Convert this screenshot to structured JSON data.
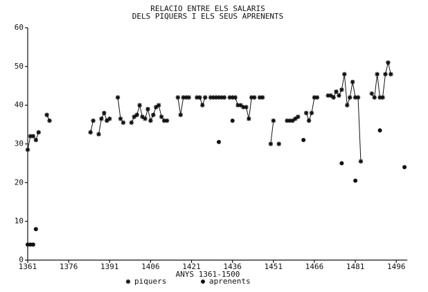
{
  "chart_data": {
    "type": "line",
    "title": [
      "RELACIO ENTRE ELS SALARIS",
      "DELS PIQUERS I ELS SEUS APRENENTS"
    ],
    "x_label": "ANYS 1361-1500",
    "xlim": [
      1361,
      1500
    ],
    "xticks": [
      1361,
      1376,
      1391,
      1406,
      1421,
      1436,
      1451,
      1466,
      1481,
      1496
    ],
    "ylim": [
      0,
      60
    ],
    "yticks": [
      0,
      10,
      20,
      30,
      40,
      50,
      60
    ],
    "grid": false,
    "series": [
      {
        "name": "piquers",
        "color": "#111111",
        "marker": "star",
        "line": true,
        "x": [
          1361,
          1362,
          1363,
          1364,
          1365,
          1366,
          1368,
          1369,
          1370,
          1384,
          1385,
          1386,
          1387,
          1388,
          1389,
          1390,
          1391,
          1392,
          1394,
          1395,
          1396,
          1397,
          1399,
          1400,
          1401,
          1402,
          1403,
          1404,
          1405,
          1406,
          1407,
          1408,
          1409,
          1410,
          1411,
          1412,
          1413,
          1416,
          1417,
          1418,
          1419,
          1420,
          1421,
          1423,
          1424,
          1425,
          1426,
          1427,
          1428,
          1429,
          1430,
          1431,
          1432,
          1433,
          1434,
          1435,
          1436,
          1437,
          1438,
          1439,
          1440,
          1441,
          1442,
          1443,
          1444,
          1445,
          1446,
          1447,
          1448,
          1450,
          1451,
          1452,
          1453,
          1454,
          1456,
          1457,
          1458,
          1459,
          1460,
          1461,
          1463,
          1464,
          1465,
          1466,
          1467,
          1468,
          1471,
          1472,
          1473,
          1474,
          1475,
          1476,
          1477,
          1478,
          1479,
          1480,
          1481,
          1482,
          1483,
          1484,
          1487,
          1488,
          1489,
          1490,
          1491,
          1492,
          1493,
          1494
        ],
        "values": [
          28.5,
          32,
          32,
          31,
          33,
          null,
          37.5,
          36,
          null,
          33,
          36,
          null,
          32.5,
          36.5,
          38,
          36,
          36.5,
          null,
          42,
          36.5,
          35.5,
          null,
          35.5,
          37,
          37.5,
          40,
          37,
          36.5,
          39,
          36,
          37.5,
          39.5,
          40,
          37,
          36,
          36,
          null,
          42,
          37.5,
          42,
          42,
          42,
          null,
          42,
          42,
          40,
          42,
          null,
          42,
          42,
          42,
          42,
          42,
          42,
          null,
          42,
          42,
          42,
          40,
          40,
          39.5,
          39.5,
          36.5,
          42,
          42,
          null,
          42,
          42,
          null,
          30,
          36,
          null,
          30,
          null,
          36,
          36,
          36,
          36.5,
          37,
          null,
          38,
          36,
          38,
          42,
          42,
          null,
          42.5,
          42.5,
          42,
          43.5,
          42.5,
          44,
          48,
          40,
          42,
          46,
          42,
          42,
          25.5,
          null,
          43,
          42,
          48,
          42,
          42,
          48,
          51,
          48
        ]
      },
      {
        "name": "aprenents",
        "color": "#111111",
        "marker": "dot",
        "line": false,
        "x": [
          1361,
          1362,
          1363,
          1364,
          1431,
          1436,
          1462,
          1476,
          1481,
          1490,
          1499
        ],
        "values": [
          4,
          4,
          4,
          8,
          30.5,
          36,
          31,
          25,
          20.5,
          33.5,
          24
        ]
      }
    ]
  }
}
